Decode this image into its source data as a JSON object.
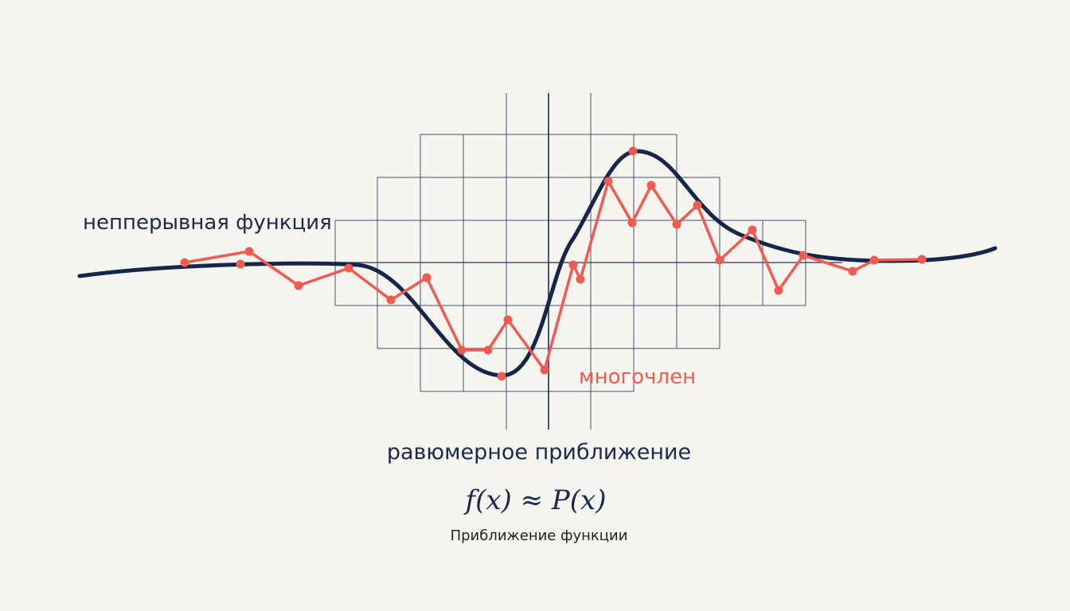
{
  "labels": {
    "function": "непперывная функция",
    "polynomial": "многочлен",
    "approximation": "равюмерное приближение",
    "formula": "f(x) ≈ P(x)",
    "caption": "Приближение функции"
  }
}
